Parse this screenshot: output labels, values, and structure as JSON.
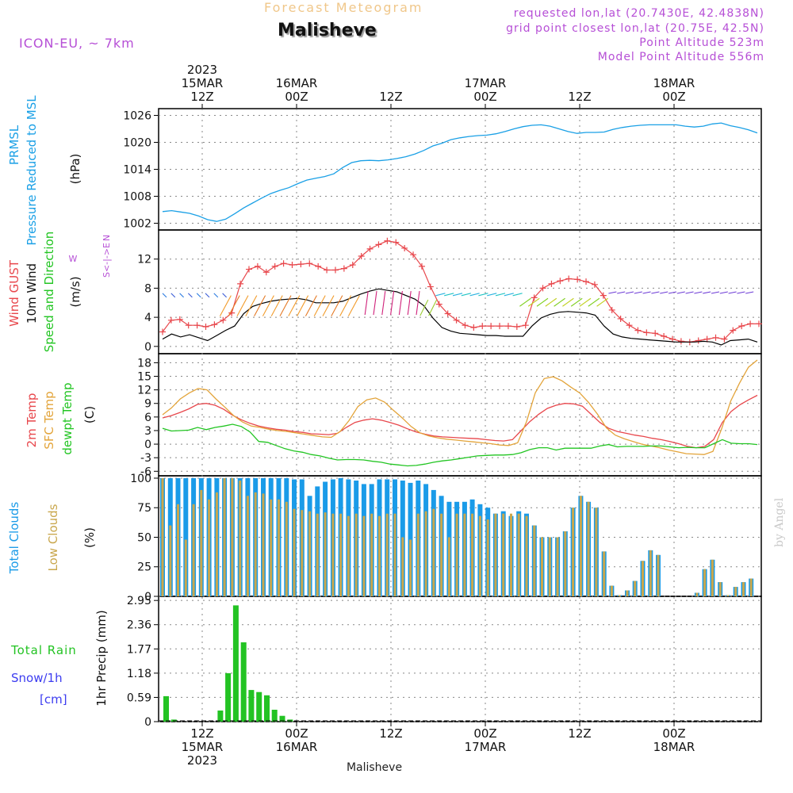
{
  "header": {
    "subtitle": "Forecast Meteogram",
    "title": "Malisheve",
    "model": "ICON-EU, ~ 7km",
    "requested": "requested lon,lat (20.7430E, 42.4838N)",
    "gridpoint": "grid point closest lon,lat (20.75E, 42.5N)",
    "point_alt": "Point Altitude 523m",
    "model_alt": "Model Point Altitude 556m",
    "byline": "by Angel",
    "footer_name": "Malisheve"
  },
  "colors": {
    "pressure": "#1aa0e6",
    "gust": "#e8474c",
    "wind": "#000000",
    "temp2m": "#e8474c",
    "sfc": "#e3a43a",
    "dewpt": "#22c522",
    "total_clouds": "#1a9be8",
    "low_clouds": "#c9a74d",
    "rain": "#23c323",
    "snow": "#3c3cf0",
    "annot": "#b64fd6"
  },
  "time_axis": {
    "hours": 76,
    "ticks": [
      {
        "h": 0,
        "top": [
          "2023",
          "15MAR",
          "12Z"
        ],
        "bottom": [
          "12Z",
          "15MAR",
          "2023"
        ]
      },
      {
        "h": 12,
        "top": [
          "16MAR",
          "00Z"
        ],
        "bottom": [
          "00Z",
          "16MAR"
        ]
      },
      {
        "h": 24,
        "top": [
          "12Z"
        ],
        "bottom": [
          "12Z"
        ]
      },
      {
        "h": 36,
        "top": [
          "17MAR",
          "00Z"
        ],
        "bottom": [
          "00Z",
          "17MAR"
        ]
      },
      {
        "h": 48,
        "top": [
          "12Z"
        ],
        "bottom": [
          "12Z"
        ]
      },
      {
        "h": 60,
        "top": [
          "18MAR",
          "00Z"
        ],
        "bottom": [
          "00Z",
          "18MAR"
        ]
      }
    ]
  },
  "chart_data": [
    {
      "type": "line",
      "panel": "pressure",
      "ylabel": [
        "PRMSL",
        "Pressure Reduced to MSL",
        "(hPa)"
      ],
      "yticks": [
        1002,
        1008,
        1014,
        1020,
        1026
      ],
      "ylim": [
        1000.5,
        1027.5
      ],
      "series": [
        {
          "values": [
            1004.6,
            1004.8,
            1004.5,
            1004.2,
            1003.6,
            1002.8,
            1002.4,
            1002.9,
            1004.1,
            1005.4,
            1006.5,
            1007.6,
            1008.6,
            1009.3,
            1009.9,
            1010.8,
            1011.6,
            1012.0,
            1012.4,
            1013.0,
            1014.4,
            1015.5,
            1015.9,
            1016.0,
            1015.9,
            1016.1,
            1016.4,
            1016.8,
            1017.4,
            1018.2,
            1019.2,
            1019.8,
            1020.6,
            1021.0,
            1021.3,
            1021.5,
            1021.6,
            1021.9,
            1022.4,
            1023.0,
            1023.5,
            1023.8,
            1023.9,
            1023.6,
            1023.0,
            1022.4,
            1022.0,
            1022.2,
            1022.2,
            1022.3,
            1022.9,
            1023.3,
            1023.6,
            1023.8,
            1023.9,
            1023.9,
            1023.9,
            1023.9,
            1023.6,
            1023.4,
            1023.6,
            1024.1,
            1024.3,
            1023.7,
            1023.3,
            1022.8,
            1022.1
          ]
        }
      ]
    },
    {
      "type": "line",
      "panel": "wind",
      "ylabel": [
        "Wind GUST",
        "10m Wind",
        "Speed and Direction",
        "(m/s)"
      ],
      "legend": [
        "N",
        "S<-|->E",
        "W"
      ],
      "yticks": [
        0,
        4,
        8,
        12
      ],
      "ylim": [
        -1,
        16
      ],
      "series": [
        {
          "name": "Wind GUST",
          "values": [
            2.0,
            3.6,
            3.7,
            2.9,
            2.9,
            2.7,
            3.0,
            3.6,
            4.6,
            8.6,
            10.6,
            11.0,
            10.2,
            11.0,
            11.4,
            11.2,
            11.3,
            11.4,
            11.0,
            10.5,
            10.5,
            10.7,
            11.2,
            12.4,
            13.4,
            14.0,
            14.5,
            14.3,
            13.5,
            12.6,
            11.0,
            8.2,
            5.8,
            4.5,
            3.6,
            2.9,
            2.6,
            2.8,
            2.8,
            2.8,
            2.8,
            2.7,
            2.9,
            6.7,
            8.0,
            8.6,
            9.0,
            9.3,
            9.2,
            8.9,
            8.5,
            7.0,
            5.0,
            3.8,
            2.9,
            2.2,
            1.9,
            1.8,
            1.4,
            1.0,
            0.7,
            0.6,
            0.8,
            1.0,
            1.2,
            1.0,
            2.2,
            2.8,
            3.1,
            3.1
          ]
        },
        {
          "name": "10m Wind",
          "values": [
            1.0,
            1.7,
            1.3,
            1.6,
            1.2,
            0.8,
            1.5,
            2.2,
            2.8,
            4.5,
            5.5,
            5.9,
            6.2,
            6.4,
            6.5,
            6.6,
            6.4,
            6.0,
            6.0,
            6.0,
            6.2,
            6.7,
            7.2,
            7.6,
            7.9,
            7.7,
            7.5,
            7.0,
            6.5,
            5.6,
            3.9,
            2.6,
            2.1,
            1.8,
            1.7,
            1.6,
            1.5,
            1.5,
            1.4,
            1.4,
            1.4,
            2.8,
            3.9,
            4.4,
            4.7,
            4.8,
            4.7,
            4.6,
            4.3,
            2.8,
            1.7,
            1.3,
            1.1,
            1.0,
            0.9,
            0.8,
            0.7,
            0.6,
            0.6,
            0.6,
            0.7,
            0.6,
            0.2,
            0.8,
            0.9,
            1.0,
            0.6
          ]
        }
      ]
    },
    {
      "type": "line",
      "panel": "temperature",
      "ylabel": [
        "2m Temp",
        "SFC Temp",
        "dewpt Temp",
        "(C)"
      ],
      "yticks": [
        -6,
        -3,
        0,
        3,
        6,
        9,
        12,
        15,
        18
      ],
      "ylim": [
        -7,
        20
      ],
      "series": [
        {
          "name": "2m Temp",
          "values": [
            5.8,
            6.3,
            7.0,
            7.8,
            8.8,
            9.0,
            8.6,
            7.7,
            6.4,
            5.4,
            4.6,
            4.0,
            3.6,
            3.3,
            3.1,
            2.8,
            2.6,
            2.3,
            2.2,
            2.1,
            2.4,
            3.7,
            4.8,
            5.3,
            5.6,
            5.3,
            4.8,
            4.2,
            3.4,
            2.7,
            2.2,
            1.8,
            1.6,
            1.5,
            1.4,
            1.3,
            1.2,
            1.0,
            0.8,
            0.7,
            1.0,
            3.0,
            5.0,
            6.6,
            7.9,
            8.6,
            9.0,
            8.9,
            8.4,
            6.6,
            4.8,
            3.5,
            2.8,
            2.4,
            2.0,
            1.7,
            1.3,
            1.0,
            0.6,
            0.1,
            -0.5,
            -0.8,
            -0.5,
            1.0,
            4.8,
            7.2,
            8.7,
            9.8,
            10.8
          ]
        },
        {
          "name": "SFC Temp",
          "values": [
            6.5,
            8.0,
            10.0,
            11.3,
            12.3,
            12.0,
            10.0,
            8.2,
            6.3,
            4.9,
            4.0,
            3.7,
            3.3,
            3.0,
            2.8,
            2.5,
            2.2,
            1.9,
            1.6,
            1.5,
            2.8,
            5.2,
            8.3,
            9.8,
            10.2,
            9.3,
            7.5,
            5.8,
            3.9,
            2.5,
            1.8,
            1.4,
            1.1,
            0.9,
            0.7,
            0.5,
            0.3,
            0.1,
            -0.2,
            -0.3,
            0.3,
            5.0,
            11.4,
            14.5,
            14.9,
            14.0,
            12.6,
            11.3,
            9.2,
            6.6,
            3.6,
            2.0,
            1.2,
            0.6,
            0.0,
            -0.4,
            -0.8,
            -1.3,
            -1.7,
            -2.1,
            -2.2,
            -2.3,
            -1.6,
            3.5,
            9.5,
            13.5,
            17.0,
            18.6
          ]
        },
        {
          "name": "dewpt Temp",
          "values": [
            3.5,
            2.9,
            3.0,
            3.1,
            3.7,
            3.2,
            3.7,
            4.0,
            4.4,
            3.9,
            2.7,
            0.6,
            0.4,
            -0.3,
            -1.0,
            -1.5,
            -1.8,
            -2.3,
            -2.6,
            -3.1,
            -3.5,
            -3.4,
            -3.4,
            -3.5,
            -3.8,
            -4.0,
            -4.4,
            -4.6,
            -4.8,
            -4.7,
            -4.4,
            -4.0,
            -3.7,
            -3.5,
            -3.2,
            -2.9,
            -2.6,
            -2.5,
            -2.4,
            -2.4,
            -2.3,
            -1.9,
            -1.2,
            -0.8,
            -0.8,
            -1.3,
            -0.9,
            -0.9,
            -0.9,
            -0.9,
            -0.4,
            -0.1,
            -0.6,
            -0.5,
            -0.5,
            -0.5,
            -0.4,
            -0.4,
            -0.6,
            -0.8,
            -0.7,
            -0.8,
            -0.8,
            0.1,
            1.0,
            0.2,
            0.1,
            0.1,
            -0.1
          ]
        }
      ]
    },
    {
      "type": "bar",
      "panel": "clouds",
      "ylabel": [
        "Total Clouds",
        "Low Clouds",
        "(%)"
      ],
      "yticks": [
        0,
        25,
        50,
        75,
        100
      ],
      "ylim": [
        0,
        102
      ],
      "series": [
        {
          "name": "Total Clouds",
          "values": [
            100,
            100,
            100,
            100,
            100,
            100,
            100,
            100,
            100,
            100,
            100,
            100,
            100,
            100,
            100,
            100,
            100,
            99,
            99,
            85,
            93,
            97,
            99,
            100,
            99,
            98,
            95,
            95,
            99,
            99,
            99,
            98,
            96,
            98,
            95,
            90,
            85,
            80,
            80,
            80,
            82,
            78,
            75,
            70,
            72,
            68,
            72,
            70,
            60,
            50,
            50,
            50,
            55,
            75,
            85,
            80,
            75,
            38,
            9,
            1,
            5,
            13,
            30,
            39,
            35,
            0,
            0,
            0,
            0,
            3,
            23,
            31,
            12,
            1,
            8,
            12,
            15
          ]
        },
        {
          "name": "Low Clouds",
          "values": [
            100,
            60,
            78,
            48,
            78,
            90,
            82,
            88,
            100,
            100,
            98,
            85,
            88,
            87,
            82,
            82,
            80,
            74,
            73,
            72,
            70,
            71,
            70,
            70,
            68,
            70,
            68,
            70,
            68,
            70,
            70,
            50,
            48,
            70,
            72,
            74,
            70,
            50,
            70,
            70,
            70,
            68,
            65,
            70,
            70,
            70,
            70,
            68,
            60,
            50,
            50,
            50,
            55,
            75,
            85,
            80,
            75,
            38,
            9,
            1,
            5,
            13,
            30,
            39,
            35,
            0,
            0,
            0,
            0,
            3,
            23,
            31,
            12,
            1,
            8,
            12,
            15
          ]
        }
      ]
    },
    {
      "type": "bar",
      "panel": "precip",
      "ylabel": [
        "1hr Precip (mm)"
      ],
      "legend": [
        "Total Rain",
        "Snow/1h",
        "[cm]"
      ],
      "yticks": [
        0,
        0.59,
        1.18,
        1.77,
        2.36,
        2.95
      ],
      "ylim": [
        0,
        3.05
      ],
      "series": [
        {
          "name": "Total Rain",
          "values": [
            0.62,
            0.05,
            0,
            0,
            0,
            0,
            0,
            0.27,
            1.18,
            2.83,
            1.93,
            0.77,
            0.72,
            0.64,
            0.29,
            0.14,
            0.05,
            0,
            0,
            0,
            0,
            0,
            0,
            0,
            0,
            0,
            0,
            0,
            0,
            0,
            0,
            0,
            0,
            0,
            0,
            0,
            0,
            0,
            0,
            0,
            0,
            0,
            0,
            0,
            0,
            0,
            0,
            0,
            0,
            0,
            0,
            0,
            0,
            0,
            0,
            0,
            0,
            0,
            0,
            0,
            0,
            0,
            0,
            0,
            0,
            0,
            0,
            0,
            0,
            0,
            0,
            0,
            0,
            0,
            0,
            0,
            0
          ]
        }
      ]
    }
  ]
}
